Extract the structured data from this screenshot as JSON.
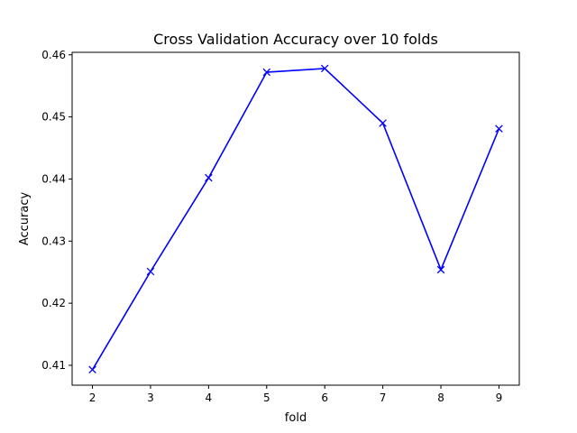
{
  "chart_data": {
    "type": "line",
    "title": "Cross Validation Accuracy over 10 folds",
    "xlabel": "fold",
    "ylabel": "Accuracy",
    "xlim": [
      1.65,
      9.35
    ],
    "ylim": [
      0.4068,
      0.4604
    ],
    "x_ticks": [
      2,
      3,
      4,
      5,
      6,
      7,
      8,
      9
    ],
    "y_ticks": [
      0.41,
      0.42,
      0.43,
      0.44,
      0.45,
      0.46
    ],
    "grid": false,
    "legend": "none",
    "series": [
      {
        "color": "#0000ff",
        "marker": "x",
        "x": [
          2,
          3,
          4,
          5,
          6,
          7,
          8,
          9
        ],
        "y": [
          0.4093,
          0.4251,
          0.4402,
          0.4572,
          0.4578,
          0.449,
          0.4254,
          0.4481
        ]
      }
    ]
  }
}
